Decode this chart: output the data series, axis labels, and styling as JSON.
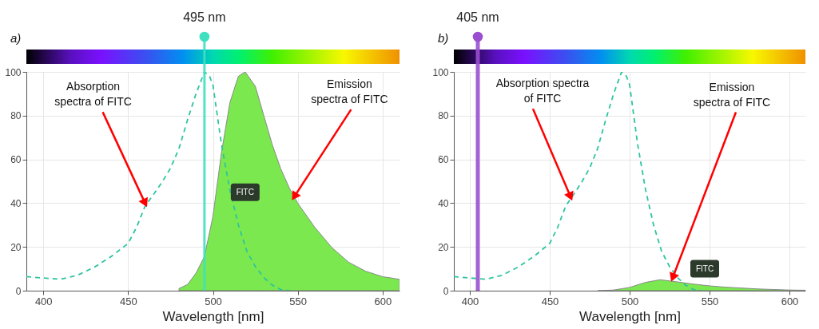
{
  "chart_data": [
    {
      "type": "line",
      "title": "a)",
      "xlabel": "Wavelength [nm]",
      "xlim": [
        390,
        610
      ],
      "ylim": [
        0,
        100
      ],
      "xticks": [
        400,
        450,
        500,
        550,
        600
      ],
      "yticks": [
        0,
        20,
        40,
        60,
        80,
        100
      ],
      "grid": true,
      "series": [
        {
          "line_style": "dashed",
          "color": "#2ec4a0",
          "x": [
            390,
            400,
            410,
            420,
            430,
            440,
            450,
            455,
            460,
            465,
            470,
            475,
            480,
            485,
            490,
            495,
            498,
            500,
            505,
            510,
            515,
            520,
            525,
            530,
            535,
            540,
            545
          ],
          "values": [
            6.4,
            5.8,
            5.2,
            7,
            10.7,
            15.6,
            21.6,
            29,
            38.7,
            44,
            49.6,
            56,
            65,
            78,
            90,
            100,
            98,
            94,
            67,
            46,
            30,
            18,
            11,
            6,
            2.5,
            0.5,
            0
          ]
        },
        {
          "type": "area",
          "color": "#7be84f",
          "x": [
            480,
            485,
            490,
            495,
            500,
            505,
            510,
            515,
            519,
            525,
            530,
            535,
            540,
            545,
            550,
            560,
            570,
            580,
            590,
            600,
            610
          ],
          "values": [
            1,
            2.8,
            8,
            15.6,
            34,
            63,
            86,
            98,
            100,
            93.4,
            80,
            66.7,
            55.7,
            47,
            40,
            29,
            19.8,
            13,
            8.9,
            6.4,
            5.2
          ]
        }
      ],
      "ref_lines": [
        {
          "axis": "x",
          "value": 495,
          "label": "495 nm",
          "color": "#3ee0c0"
        }
      ],
      "annotations": [
        {
          "text": "Absorption spectra of FITC",
          "x": 460,
          "y": 40
        },
        {
          "text": "Emission spectra of FITC",
          "x": 548,
          "y": 43
        },
        {
          "text": "FITC",
          "x": 519,
          "y": 45
        }
      ]
    },
    {
      "type": "line",
      "title": "b)",
      "xlabel": "Wavelength [nm]",
      "xlim": [
        390,
        610
      ],
      "ylim": [
        0,
        100
      ],
      "xticks": [
        400,
        450,
        500,
        550,
        600
      ],
      "yticks": [
        0,
        20,
        40,
        60,
        80,
        100
      ],
      "grid": true,
      "series": [
        {
          "line_style": "dashed",
          "color": "#2ec4a0",
          "x": [
            390,
            400,
            410,
            420,
            430,
            440,
            450,
            455,
            460,
            465,
            470,
            475,
            480,
            485,
            490,
            495,
            498,
            500,
            505,
            510,
            515,
            520,
            525,
            530,
            535,
            540,
            545
          ],
          "values": [
            6.4,
            5.8,
            5.2,
            7,
            10.7,
            15.6,
            21.6,
            29,
            38.7,
            44,
            49.6,
            56,
            65,
            78,
            90,
            100,
            98,
            94,
            67,
            46,
            30,
            18,
            11,
            6,
            2.5,
            0.5,
            0
          ]
        },
        {
          "type": "area",
          "color": "#7be84f",
          "x": [
            480,
            490,
            500,
            510,
            519,
            530,
            540,
            550,
            560,
            580,
            600,
            610
          ],
          "values": [
            0,
            0.3,
            1.5,
            3.8,
            5,
            4,
            3,
            2.2,
            1.6,
            0.8,
            0.3,
            0.2
          ]
        }
      ],
      "ref_lines": [
        {
          "axis": "x",
          "value": 405,
          "label": "405 nm",
          "color": "#9a4fd0"
        }
      ],
      "annotations": [
        {
          "text": "Absorption spectra of FITC",
          "x": 463,
          "y": 43
        },
        {
          "text": "Emission spectra of FITC",
          "x": 527,
          "y": 6
        },
        {
          "text": "FITC",
          "x": 547,
          "y": 10
        }
      ]
    }
  ]
}
